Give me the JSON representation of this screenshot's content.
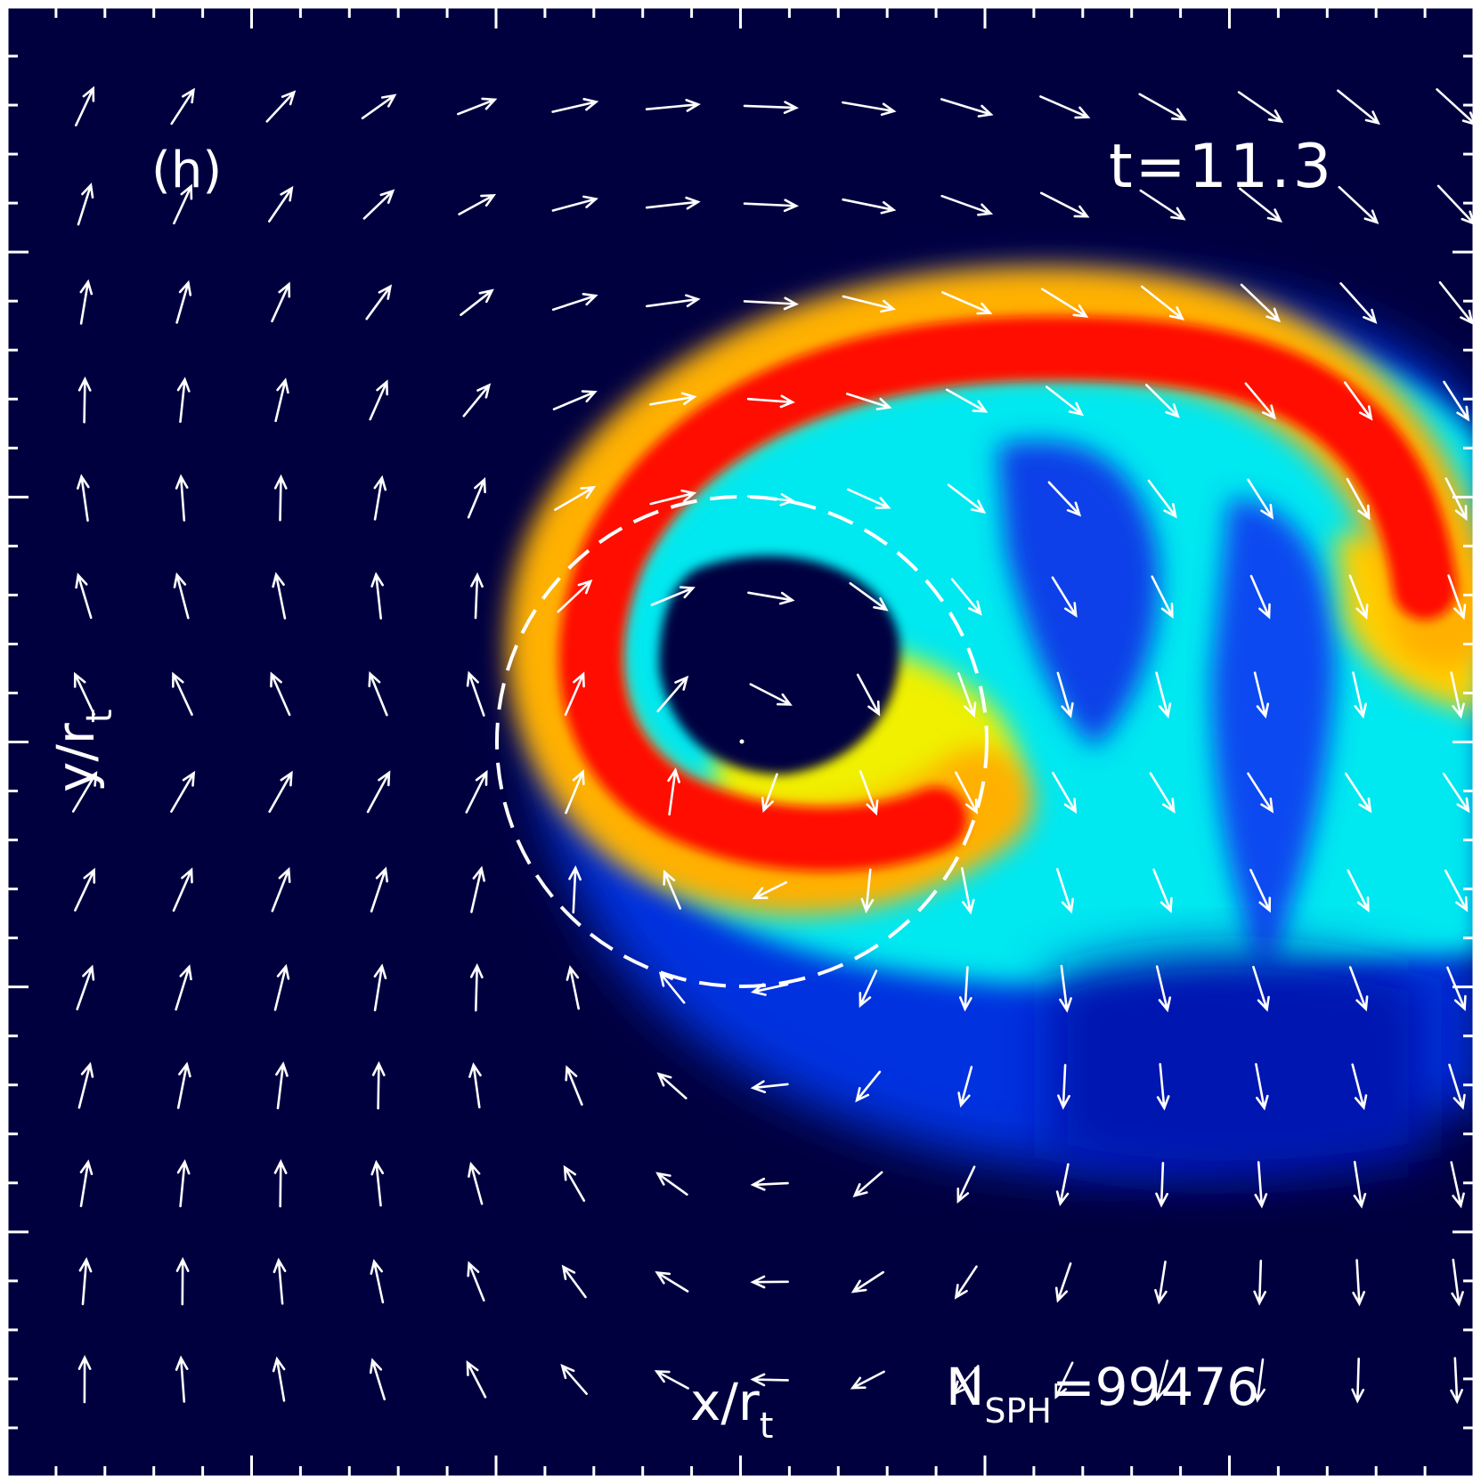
{
  "chart_data": {
    "type": "heatmap",
    "panel_label": "(h)",
    "time_label": "t=11.3",
    "xlabel_main": "x/r",
    "xlabel_sub": "t",
    "ylabel_main": "y/r",
    "ylabel_sub": "t",
    "nsph_main": "N",
    "nsph_sub": "SPH",
    "nsph_value": "=99476",
    "colormap": [
      "#00003f",
      "#0000c8",
      "#0a4bff",
      "#00ffff",
      "#ffff00",
      "#ff0000"
    ],
    "overlay": "velocity-field arrows",
    "reference_circle": "dashed white",
    "frame_color": "#ffffff"
  }
}
